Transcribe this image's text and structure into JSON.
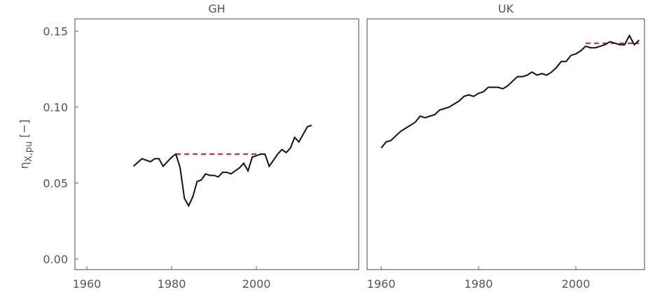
{
  "chart_data": [
    {
      "type": "line",
      "title": "GH",
      "ylabel": {
        "symbol": "η",
        "subscript": "X,pu",
        "unit": "[−]"
      },
      "x": [
        1971,
        1972,
        1973,
        1974,
        1975,
        1976,
        1977,
        1978,
        1979,
        1980,
        1981,
        1982,
        1983,
        1984,
        1985,
        1986,
        1987,
        1988,
        1989,
        1990,
        1991,
        1992,
        1993,
        1994,
        1995,
        1996,
        1997,
        1998,
        1999,
        2000,
        2001,
        2002,
        2003,
        2004,
        2005,
        2006,
        2007,
        2008,
        2009,
        2010,
        2011,
        2012,
        2013
      ],
      "values": [
        0.061,
        0.0635,
        0.066,
        0.065,
        0.064,
        0.066,
        0.066,
        0.061,
        0.064,
        0.067,
        0.069,
        0.06,
        0.04,
        0.035,
        0.041,
        0.051,
        0.052,
        0.056,
        0.055,
        0.055,
        0.054,
        0.057,
        0.057,
        0.056,
        0.058,
        0.06,
        0.063,
        0.058,
        0.067,
        0.068,
        0.069,
        0.069,
        0.061,
        0.065,
        0.069,
        0.072,
        0.07,
        0.073,
        0.08,
        0.077,
        0.082,
        0.087,
        0.088
      ],
      "color": "#111111",
      "reference": {
        "x": [
          1981,
          2002
        ],
        "values": [
          0.069,
          0.069
        ],
        "color": "#c8202a"
      },
      "xlim": [
        1957.2,
        2024.1
      ],
      "xticks": [
        1960,
        1980,
        2000
      ],
      "ylim": [
        -0.007,
        0.158
      ],
      "yticks": [
        {
          "value": 0,
          "label": "0.00"
        },
        {
          "value": 0.05,
          "label": "0.05"
        },
        {
          "value": 0.1,
          "label": "0.10"
        },
        {
          "value": 0.15,
          "label": "0.15"
        }
      ]
    },
    {
      "type": "line",
      "title": "UK",
      "x": [
        1960,
        1961,
        1962,
        1963,
        1964,
        1965,
        1966,
        1967,
        1968,
        1969,
        1970,
        1971,
        1972,
        1973,
        1974,
        1975,
        1976,
        1977,
        1978,
        1979,
        1980,
        1981,
        1982,
        1983,
        1984,
        1985,
        1986,
        1987,
        1988,
        1989,
        1990,
        1991,
        1992,
        1993,
        1994,
        1995,
        1996,
        1997,
        1998,
        1999,
        2000,
        2001,
        2002,
        2003,
        2004,
        2005,
        2006,
        2007,
        2008,
        2009,
        2010,
        2011,
        2012,
        2013
      ],
      "values": [
        0.073,
        0.077,
        0.078,
        0.081,
        0.084,
        0.086,
        0.088,
        0.09,
        0.094,
        0.093,
        0.094,
        0.095,
        0.098,
        0.099,
        0.1,
        0.102,
        0.104,
        0.107,
        0.108,
        0.107,
        0.109,
        0.11,
        0.113,
        0.113,
        0.113,
        0.112,
        0.114,
        0.117,
        0.12,
        0.12,
        0.121,
        0.123,
        0.121,
        0.122,
        0.121,
        0.123,
        0.126,
        0.13,
        0.13,
        0.134,
        0.135,
        0.137,
        0.14,
        0.139,
        0.139,
        0.14,
        0.141,
        0.143,
        0.142,
        0.141,
        0.141,
        0.147,
        0.141,
        0.144
      ],
      "color": "#111111",
      "reference": {
        "x": [
          2002,
          2013
        ],
        "values": [
          0.142,
          0.142
        ],
        "color": "#c8202a"
      },
      "xlim": [
        1957.1,
        2014.1
      ],
      "xticks": [
        1960,
        1980,
        2000
      ],
      "ylim": [
        -0.007,
        0.158
      ]
    }
  ]
}
